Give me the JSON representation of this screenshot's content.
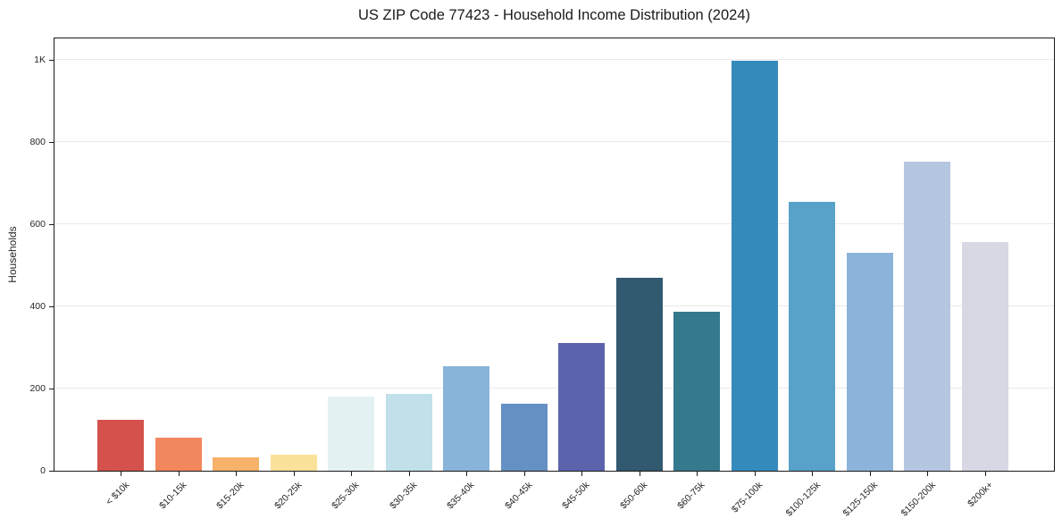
{
  "figure": {
    "title": "US ZIP Code 77423 - Household Income Distribution (2024)"
  },
  "chart_data": {
    "type": "bar",
    "title": "US ZIP Code 77423 - Household Income Distribution (2024)",
    "xlabel": "",
    "ylabel": "Households",
    "categories": [
      "< $10k",
      "$10-15k",
      "$15-20k",
      "$20-25k",
      "$25-30k",
      "$30-35k",
      "$35-40k",
      "$40-45k",
      "$45-50k",
      "$50-60k",
      "$60-75k",
      "$75-100k",
      "$100-125k",
      "$125-150k",
      "$150-200k",
      "$200k+"
    ],
    "values": [
      125,
      81,
      33,
      40,
      180,
      188,
      255,
      164,
      311,
      469,
      388,
      997,
      655,
      530,
      752,
      556
    ],
    "bar_colors": [
      "#d4524b",
      "#f2875e",
      "#f6b16a",
      "#fbe29a",
      "#e4f1f2",
      "#c0e0ea",
      "#88b4da",
      "#6590c4",
      "#5c63ad",
      "#31596f",
      "#35798f",
      "#358abc",
      "#58a1c8",
      "#8cb4da",
      "#b5c6e1",
      "#d7d8e4"
    ],
    "ylim": [
      0,
      1050
    ],
    "yticks": [
      {
        "value": 0,
        "label": "0"
      },
      {
        "value": 200,
        "label": "200"
      },
      {
        "value": 400,
        "label": "400"
      },
      {
        "value": 600,
        "label": "600"
      },
      {
        "value": 800,
        "label": "800"
      },
      {
        "value": 1000,
        "label": "1K"
      }
    ],
    "grid": "horizontal",
    "legend": "none",
    "background_color": "#ffffff",
    "gridline_color": "#e9e9e9",
    "spine_color": "#1a1a1a"
  }
}
